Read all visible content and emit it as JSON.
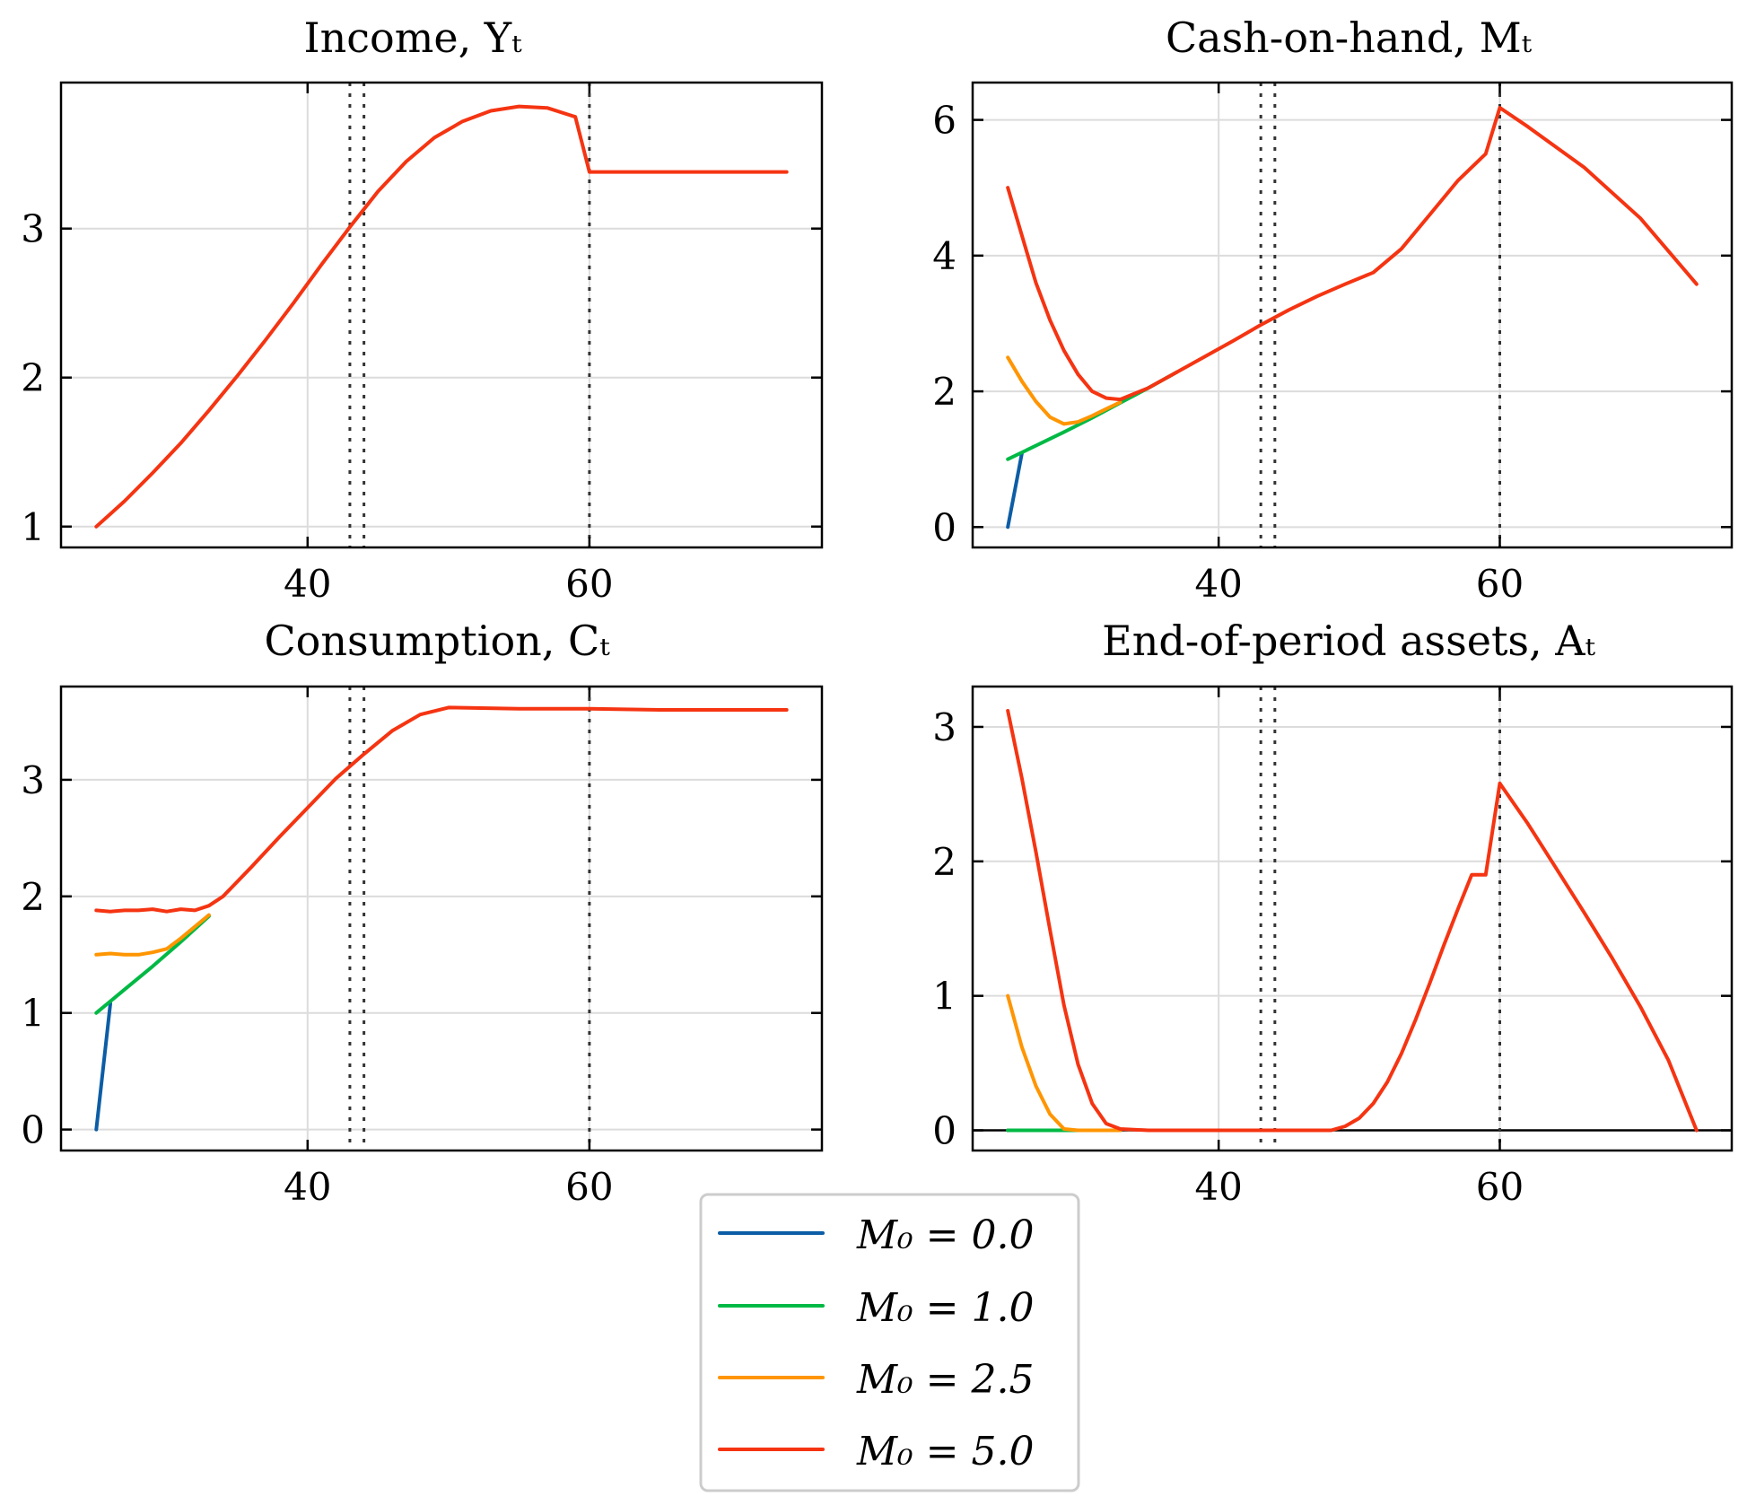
{
  "chart_data": [
    {
      "type": "line",
      "title": "Income, Yₜ",
      "xlim": [
        22.5,
        76.5
      ],
      "ylim": [
        0.86,
        3.98
      ],
      "xticks": [
        40,
        60
      ],
      "yticks": [
        1,
        2,
        3
      ],
      "vlines": [
        43,
        44,
        60
      ],
      "zero_line": false,
      "series": [
        {
          "name": "M₀ = 5.0",
          "color": "#f53412",
          "x": [
            25,
            27,
            29,
            31,
            33,
            35,
            37,
            39,
            41,
            43,
            45,
            47,
            49,
            51,
            53,
            55,
            57,
            59,
            60,
            62,
            66,
            70,
            74
          ],
          "y": [
            1.0,
            1.17,
            1.36,
            1.56,
            1.78,
            2.01,
            2.25,
            2.5,
            2.76,
            3.01,
            3.25,
            3.45,
            3.61,
            3.72,
            3.79,
            3.82,
            3.81,
            3.75,
            3.38,
            3.38,
            3.38,
            3.38,
            3.38
          ]
        }
      ]
    },
    {
      "type": "line",
      "title": "Cash-on-hand, Mₜ",
      "xlim": [
        22.5,
        76.5
      ],
      "ylim": [
        -0.3,
        6.55
      ],
      "xticks": [
        40,
        60
      ],
      "yticks": [
        0,
        2,
        4,
        6
      ],
      "vlines": [
        43,
        44,
        60
      ],
      "zero_line": false,
      "series": [
        {
          "name": "M₀ = 0.0",
          "color": "#0c5da5",
          "x": [
            25,
            26
          ],
          "y": [
            0.0,
            1.08
          ]
        },
        {
          "name": "M₀ = 1.0",
          "color": "#00b945",
          "x": [
            25,
            27,
            29,
            31,
            33,
            35,
            37
          ],
          "y": [
            1.0,
            1.2,
            1.4,
            1.61,
            1.83,
            2.05,
            2.28
          ]
        },
        {
          "name": "M₀ = 2.5",
          "color": "#ff9500",
          "x": [
            25,
            26,
            27,
            28,
            29,
            30,
            31,
            32,
            33
          ],
          "y": [
            2.5,
            2.15,
            1.85,
            1.62,
            1.52,
            1.55,
            1.64,
            1.74,
            1.84
          ]
        },
        {
          "name": "M₀ = 5.0",
          "color": "#f53412",
          "x": [
            25,
            26,
            27,
            28,
            29,
            30,
            31,
            32,
            33,
            35,
            37,
            39,
            41,
            43,
            45,
            47,
            49,
            51,
            53,
            55,
            57,
            59,
            60,
            62,
            66,
            70,
            74
          ],
          "y": [
            5.0,
            4.3,
            3.6,
            3.05,
            2.6,
            2.25,
            2.0,
            1.9,
            1.88,
            2.05,
            2.28,
            2.51,
            2.74,
            2.98,
            3.2,
            3.4,
            3.58,
            3.75,
            4.1,
            4.6,
            5.1,
            5.5,
            6.18,
            5.9,
            5.3,
            4.55,
            3.58
          ]
        }
      ]
    },
    {
      "type": "line",
      "title": "Consumption, Cₜ",
      "xlim": [
        22.5,
        76.5
      ],
      "ylim": [
        -0.18,
        3.8
      ],
      "xticks": [
        40,
        60
      ],
      "yticks": [
        0,
        1,
        2,
        3
      ],
      "vlines": [
        43,
        44,
        60
      ],
      "zero_line": false,
      "series": [
        {
          "name": "M₀ = 0.0",
          "color": "#0c5da5",
          "x": [
            25,
            26
          ],
          "y": [
            0.0,
            1.08
          ]
        },
        {
          "name": "M₀ = 1.0",
          "color": "#00b945",
          "x": [
            25,
            27,
            29,
            31,
            33
          ],
          "y": [
            1.0,
            1.2,
            1.4,
            1.61,
            1.83
          ]
        },
        {
          "name": "M₀ = 2.5",
          "color": "#ff9500",
          "x": [
            25,
            26,
            27,
            28,
            29,
            30,
            31,
            32,
            33
          ],
          "y": [
            1.5,
            1.51,
            1.5,
            1.5,
            1.52,
            1.55,
            1.64,
            1.74,
            1.84
          ]
        },
        {
          "name": "M₀ = 5.0",
          "color": "#f53412",
          "x": [
            25,
            26,
            27,
            28,
            29,
            30,
            31,
            32,
            33,
            34,
            36,
            38,
            40,
            42,
            44,
            46,
            48,
            50,
            55,
            60,
            65,
            70,
            74
          ],
          "y": [
            1.88,
            1.87,
            1.88,
            1.88,
            1.89,
            1.87,
            1.89,
            1.88,
            1.92,
            2.0,
            2.25,
            2.51,
            2.76,
            3.01,
            3.22,
            3.42,
            3.56,
            3.62,
            3.61,
            3.61,
            3.6,
            3.6,
            3.6
          ]
        }
      ]
    },
    {
      "type": "line",
      "title": "End-of-period assets, Aₜ",
      "xlim": [
        22.5,
        76.5
      ],
      "ylim": [
        -0.15,
        3.3
      ],
      "xticks": [
        40,
        60
      ],
      "yticks": [
        0,
        1,
        2,
        3
      ],
      "vlines": [
        43,
        44,
        60
      ],
      "zero_line": true,
      "series": [
        {
          "name": "M₀ = 0.0",
          "color": "#0c5da5",
          "x": [
            25,
            26
          ],
          "y": [
            0.0,
            0.0
          ]
        },
        {
          "name": "M₀ = 1.0",
          "color": "#00b945",
          "x": [
            25,
            27,
            29,
            31,
            33
          ],
          "y": [
            0.0,
            0.0,
            0.0,
            0.0,
            0.0
          ]
        },
        {
          "name": "M₀ = 2.5",
          "color": "#ff9500",
          "x": [
            25,
            26,
            27,
            28,
            29,
            30,
            31,
            33
          ],
          "y": [
            1.0,
            0.62,
            0.33,
            0.12,
            0.01,
            0.0,
            0.0,
            0.0
          ]
        },
        {
          "name": "M₀ = 5.0",
          "color": "#f53412",
          "x": [
            25,
            26,
            27,
            28,
            29,
            30,
            31,
            32,
            33,
            35,
            40,
            45,
            48,
            49,
            50,
            51,
            52,
            53,
            54,
            55,
            56,
            57,
            58,
            59,
            60,
            62,
            64,
            66,
            68,
            70,
            72,
            74
          ],
          "y": [
            3.12,
            2.62,
            2.07,
            1.49,
            0.93,
            0.49,
            0.2,
            0.05,
            0.01,
            0.0,
            0.0,
            0.0,
            0.0,
            0.03,
            0.09,
            0.2,
            0.36,
            0.57,
            0.82,
            1.09,
            1.37,
            1.64,
            1.9,
            1.9,
            2.58,
            2.28,
            1.95,
            1.62,
            1.28,
            0.92,
            0.52,
            0.0
          ]
        }
      ]
    }
  ],
  "legend": {
    "location": "bottom-center",
    "entries": [
      {
        "label": "M₀ = 0.0",
        "color": "#0c5da5"
      },
      {
        "label": "M₀ = 1.0",
        "color": "#00b945"
      },
      {
        "label": "M₀ = 2.5",
        "color": "#ff9500"
      },
      {
        "label": "M₀ = 5.0",
        "color": "#f53412"
      }
    ]
  }
}
